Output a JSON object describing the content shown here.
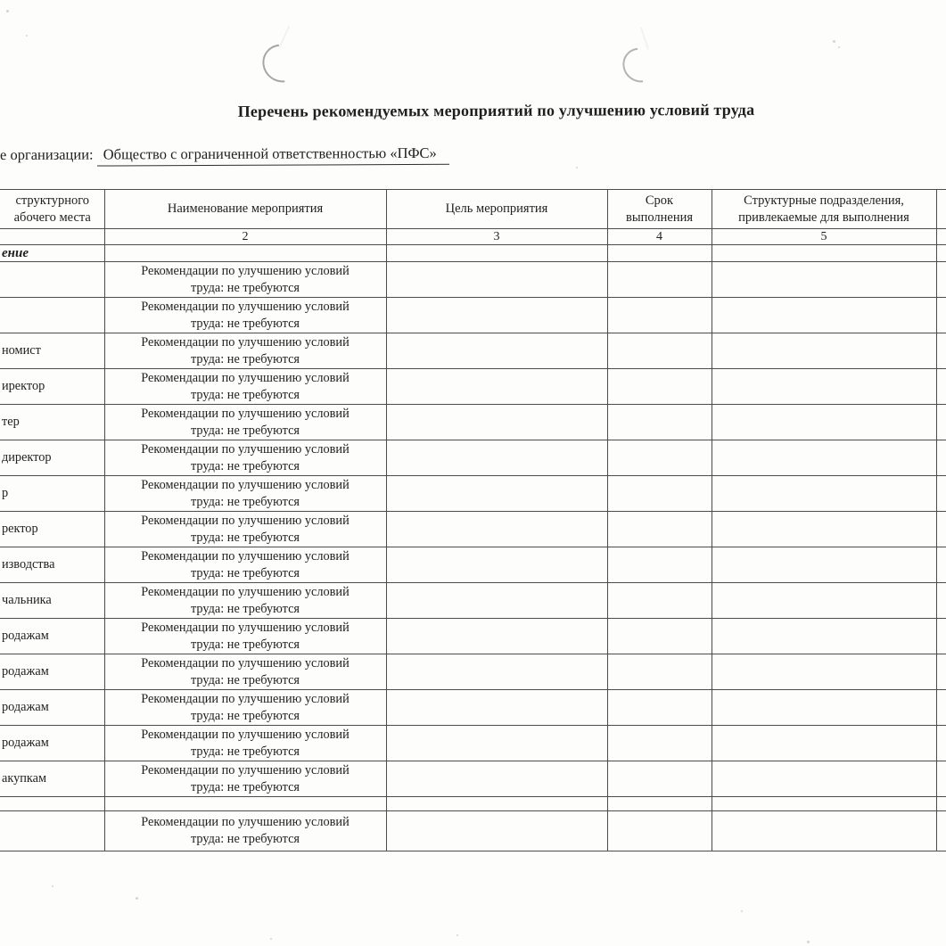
{
  "document": {
    "title": "Перечень рекомендуемых мероприятий по улучшению условий труда",
    "org_label": "е организации:",
    "org_value": "Общество с ограниченной ответственностью «ПФС»"
  },
  "table": {
    "header": {
      "workplace_line1": "структурного",
      "workplace_line2": "абочего места",
      "measure": "Наименование мероприятия",
      "goal": "Цель мероприятия",
      "deadline_line1": "Срок",
      "deadline_line2": "выполнения",
      "departments_line1": "Структурные подразделения,",
      "departments_line2": "привлекаемые для выполнения"
    },
    "column_numbers": [
      "2",
      "3",
      "4",
      "5"
    ],
    "section_label": "ение",
    "rec_line1": "Рекомендации по улучшению условий",
    "rec_line2": "труда: не требуются",
    "rows": [
      {
        "label": "",
        "rec": true
      },
      {
        "label": "",
        "rec": true
      },
      {
        "label": "номист",
        "rec": true
      },
      {
        "label": "иректор",
        "rec": true
      },
      {
        "label": "тер",
        "rec": true
      },
      {
        "label": "директор",
        "rec": true
      },
      {
        "label": "р",
        "rec": true
      },
      {
        "label": "ректор",
        "rec": true
      },
      {
        "label": "изводства",
        "rec": true
      },
      {
        "label": "чальника",
        "rec": true
      },
      {
        "label": "родажам",
        "rec": true
      },
      {
        "label": "родажам",
        "rec": true
      },
      {
        "label": "родажам",
        "rec": true
      },
      {
        "label": "родажам",
        "rec": true
      },
      {
        "label": "акупкам",
        "rec": true
      },
      {
        "label": "",
        "rec": false,
        "spacer": true
      },
      {
        "label": "",
        "rec": true,
        "last": true
      }
    ]
  }
}
